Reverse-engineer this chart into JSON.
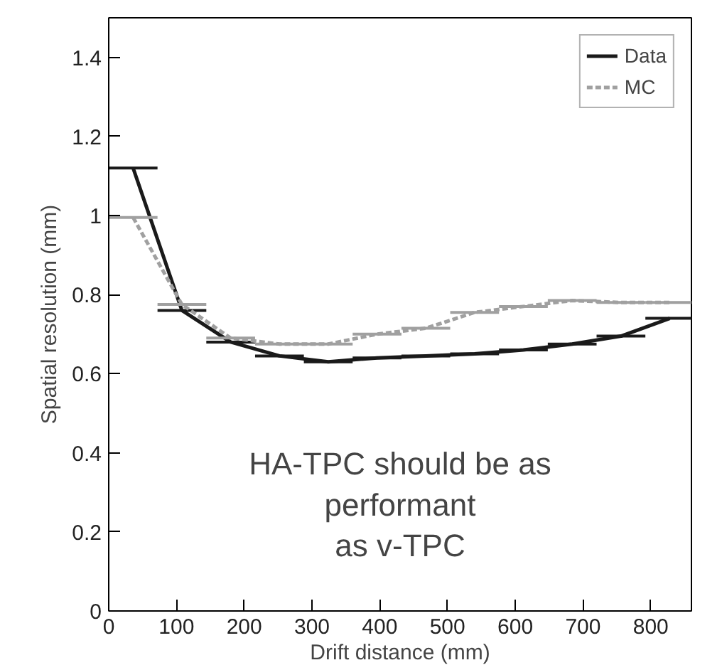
{
  "chart_data": {
    "type": "line",
    "xlabel": "Drift distance (mm)",
    "ylabel": "Spatial resolution (mm)",
    "x": [
      36,
      108,
      180,
      252,
      324,
      396,
      468,
      540,
      612,
      684,
      756,
      828
    ],
    "series": [
      {
        "name": "Data",
        "color": "#1a1a1a",
        "line_style": "solid",
        "values": [
          1.12,
          0.76,
          0.68,
          0.645,
          0.63,
          0.64,
          0.645,
          0.65,
          0.66,
          0.675,
          0.695,
          0.74
        ],
        "xerrors": [
          36,
          36,
          36,
          36,
          36,
          36,
          36,
          36,
          36,
          36,
          36,
          36
        ]
      },
      {
        "name": "MC",
        "color": "#a0a0a0",
        "line_style": "dashed",
        "values": [
          0.995,
          0.775,
          0.69,
          0.675,
          0.675,
          0.7,
          0.715,
          0.755,
          0.77,
          0.785,
          0.78,
          0.78
        ],
        "xerrors": [
          36,
          36,
          36,
          36,
          36,
          36,
          36,
          36,
          36,
          36,
          36,
          36
        ]
      }
    ],
    "xlim": [
      0,
      860
    ],
    "ylim": [
      0,
      1.5
    ],
    "xticks": [
      0,
      100,
      200,
      300,
      400,
      500,
      600,
      700,
      800
    ],
    "yticks": [
      0,
      0.2,
      0.4,
      0.6,
      0.8,
      1,
      1.2,
      1.4
    ],
    "marker": "none",
    "grid": false,
    "legend": "top right",
    "annotations": [
      "HA-TPC should be as\nperformant\nas v-TPC"
    ]
  }
}
